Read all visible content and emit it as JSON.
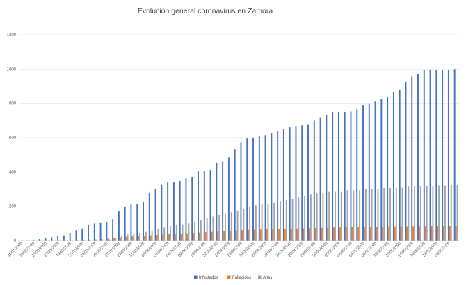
{
  "chart_data": {
    "type": "bar",
    "title": "Evolución general coronavirus en Zamora",
    "xlabel": "",
    "ylabel": "",
    "ylim": [
      0,
      1200
    ],
    "yticks": [
      0,
      200,
      400,
      600,
      800,
      1000,
      1200
    ],
    "grid": true,
    "legend_position": "bottom",
    "categories": [
      "11/03/2020",
      "12/03/2020",
      "13/03/2020",
      "14/03/2020",
      "15/03/2020",
      "16/03/2020",
      "17/03/2020",
      "18/03/2020",
      "19/03/2020",
      "20/03/2020",
      "21/03/2020",
      "22/03/2020",
      "23/03/2020",
      "24/03/2020",
      "25/03/2020",
      "26/03/2020",
      "27/03/2020",
      "28/03/2020",
      "29/03/2020",
      "30/03/2020",
      "31/03/2020",
      "01/04/2020",
      "02/04/2020",
      "03/04/2020",
      "04/04/2020",
      "05/04/2020",
      "06/04/2020",
      "07/04/2020",
      "08/04/2020",
      "09/04/2020",
      "10/04/2020",
      "11/04/2020",
      "12/04/2020",
      "13/04/2020",
      "14/04/2020",
      "15/04/2020",
      "16/04/2020",
      "17/04/2020",
      "18/04/2020",
      "19/04/2020",
      "20/04/2020",
      "21/04/2020",
      "22/04/2020",
      "23/04/2020",
      "24/04/2020",
      "25/04/2020",
      "26/04/2020",
      "27/04/2020",
      "28/04/2020",
      "29/04/2020",
      "30/04/2020",
      "01/05/2020",
      "02/05/2020",
      "03/05/2020",
      "04/05/2020",
      "05/05/2020",
      "06/05/2020",
      "07/05/2020",
      "08/05/2020",
      "09/05/2020",
      "10/05/2020",
      "11/05/2020",
      "12/05/2020",
      "13/05/2020",
      "14/05/2020",
      "15/05/2020",
      "16/05/2020",
      "17/05/2020",
      "18/05/2020",
      "19/05/2020",
      "20/05/2020",
      "21/05/2020"
    ],
    "tick_labels_shown": [
      "11/03/2020",
      "13/03/2020",
      "15/03/2020",
      "17/03/2020",
      "19/03/2020",
      "21/03/2020",
      "23/03/2020",
      "25/03/2020",
      "27/03/2020",
      "29/03/2020",
      "31/03/2020",
      "02/04/2020",
      "04/04/2020",
      "06/04/2020",
      "08/04/2020",
      "10/04/2020",
      "12/04/2020",
      "14/04/2020",
      "16/04/2020",
      "18/04/2020",
      "20/04/2020",
      "22/04/2020",
      "24/04/2020",
      "26/04/2020",
      "28/04/2020",
      "30/04/2020",
      "02/05/2020",
      "04/05/2020",
      "06/05/2020",
      "08/05/2020",
      "10/05/2020",
      "12/05/2020",
      "14/05/2020",
      "16/05/2020",
      "18/05/2020",
      "20/05/2020"
    ],
    "series": [
      {
        "name": "Infectados",
        "color": "#4472C4",
        "values": [
          1,
          2,
          5,
          8,
          12,
          18,
          25,
          30,
          45,
          60,
          70,
          90,
          100,
          102,
          105,
          125,
          170,
          195,
          210,
          215,
          225,
          280,
          300,
          325,
          340,
          340,
          345,
          365,
          370,
          405,
          405,
          410,
          455,
          460,
          485,
          530,
          570,
          595,
          600,
          610,
          615,
          625,
          640,
          650,
          660,
          668,
          672,
          675,
          700,
          715,
          730,
          750,
          750,
          750,
          752,
          765,
          790,
          800,
          810,
          825,
          835,
          865,
          880,
          925,
          955,
          970,
          995,
          995,
          995,
          995,
          995,
          1000
        ]
      },
      {
        "name": "Fallecidos",
        "color": "#ED7D31",
        "values": [
          0,
          0,
          0,
          0,
          0,
          0,
          1,
          1,
          2,
          3,
          4,
          5,
          6,
          8,
          10,
          14,
          18,
          22,
          24,
          26,
          28,
          30,
          32,
          34,
          36,
          38,
          40,
          42,
          44,
          46,
          48,
          50,
          52,
          54,
          56,
          58,
          60,
          62,
          63,
          64,
          65,
          66,
          67,
          68,
          69,
          70,
          71,
          72,
          73,
          74,
          75,
          76,
          77,
          78,
          78,
          79,
          80,
          80,
          81,
          81,
          82,
          82,
          83,
          83,
          84,
          84,
          84,
          85,
          85,
          85,
          85,
          85
        ]
      },
      {
        "name": "Altas",
        "color": "#A5A5A5",
        "values": [
          0,
          0,
          0,
          0,
          0,
          0,
          0,
          0,
          0,
          0,
          0,
          0,
          0,
          0,
          5,
          15,
          25,
          35,
          40,
          45,
          50,
          55,
          65,
          75,
          85,
          90,
          95,
          100,
          110,
          120,
          130,
          140,
          150,
          155,
          165,
          175,
          185,
          195,
          205,
          210,
          215,
          220,
          230,
          235,
          240,
          250,
          260,
          270,
          275,
          280,
          285,
          285,
          285,
          290,
          290,
          295,
          300,
          300,
          300,
          305,
          305,
          310,
          310,
          315,
          315,
          320,
          320,
          320,
          322,
          322,
          325,
          325
        ]
      }
    ]
  }
}
